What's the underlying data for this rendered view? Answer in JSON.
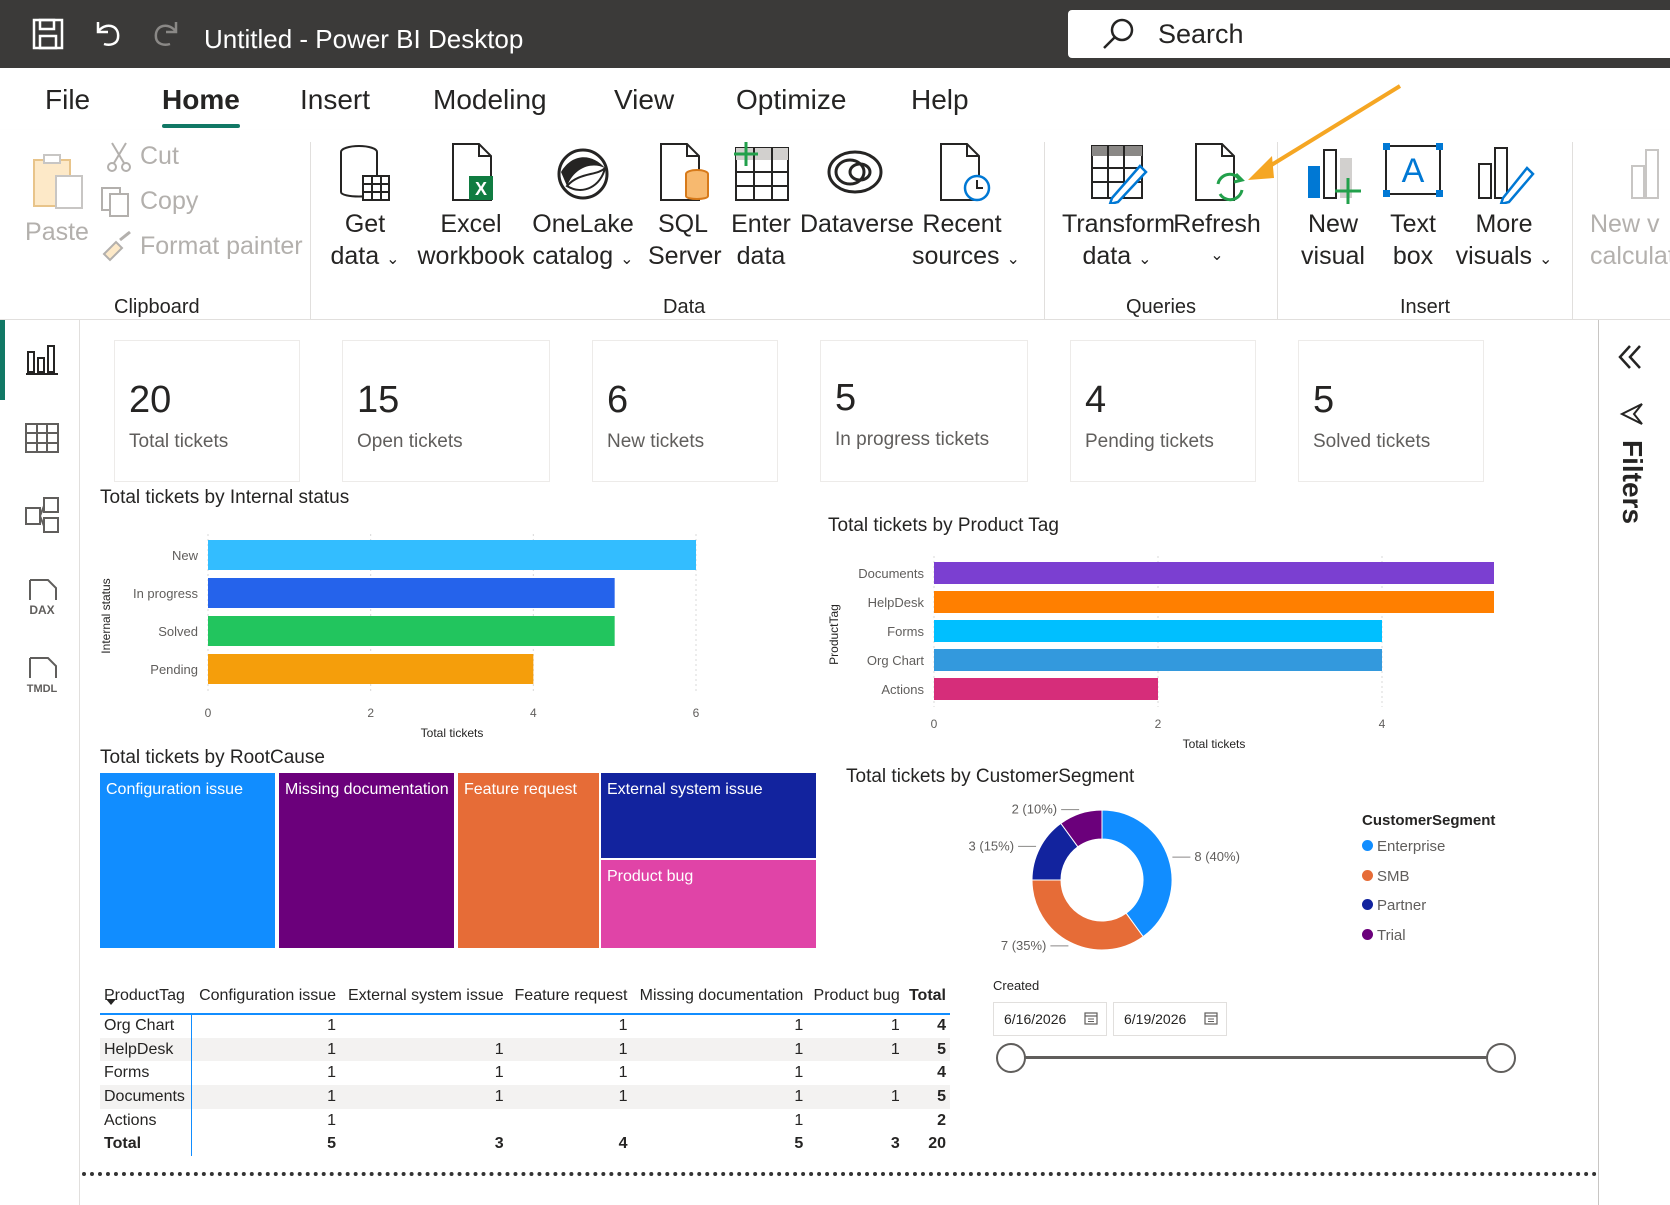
{
  "titlebar": {
    "title": "Untitled - Power BI Desktop",
    "search_label": "Search"
  },
  "menu": {
    "tabs": [
      "File",
      "Home",
      "Insert",
      "Modeling",
      "View",
      "Optimize",
      "Help"
    ],
    "active": "Home"
  },
  "ribbon": {
    "clipboard": {
      "paste": "Paste",
      "cut": "Cut",
      "copy": "Copy",
      "format_painter": "Format painter",
      "label": "Clipboard"
    },
    "data": {
      "get_data": [
        "Get",
        "data"
      ],
      "excel": [
        "Excel",
        "workbook"
      ],
      "onelake": [
        "OneLake",
        "catalog"
      ],
      "sql": [
        "SQL",
        "Server"
      ],
      "enter": [
        "Enter",
        "data"
      ],
      "dataverse": "Dataverse",
      "recent": [
        "Recent",
        "sources"
      ],
      "label": "Data"
    },
    "queries": {
      "transform": [
        "Transform",
        "data"
      ],
      "refresh": "Refresh",
      "label": "Queries"
    },
    "insert": {
      "new_visual": [
        "New",
        "visual"
      ],
      "text_box": [
        "Text",
        "box"
      ],
      "more_visuals": [
        "More",
        "visuals"
      ],
      "label": "Insert"
    },
    "calc": [
      "New v",
      "calculat"
    ]
  },
  "filters_label": "Filters",
  "cards": [
    {
      "value": "20",
      "label": "Total tickets"
    },
    {
      "value": "15",
      "label": "Open tickets"
    },
    {
      "value": "6",
      "label": "New tickets"
    },
    {
      "value": "5",
      "label": "In progress tickets"
    },
    {
      "value": "4",
      "label": "Pending tickets"
    },
    {
      "value": "5",
      "label": "Solved tickets"
    }
  ],
  "chart_data": [
    {
      "type": "bar",
      "title": "Total tickets by Internal status",
      "xlabel": "Total tickets",
      "ylabel": "Internal status",
      "categories": [
        "New",
        "In progress",
        "Solved",
        "Pending"
      ],
      "values": [
        6,
        5,
        5,
        4
      ],
      "colors": [
        "#33bdff",
        "#2563eb",
        "#22c55e",
        "#f59e0b"
      ],
      "xlim": [
        0,
        6
      ],
      "ticks": [
        0,
        2,
        4,
        6
      ]
    },
    {
      "type": "bar",
      "title": "Total tickets by Product Tag",
      "xlabel": "Total tickets",
      "ylabel": "ProductTag",
      "categories": [
        "Documents",
        "HelpDesk",
        "Forms",
        "Org Chart",
        "Actions"
      ],
      "values": [
        5,
        5,
        4,
        4,
        2
      ],
      "colors": [
        "#7b3fd1",
        "#ff7f00",
        "#00bfff",
        "#3399dd",
        "#d62d7a"
      ],
      "xlim": [
        0,
        5
      ],
      "ticks": [
        0,
        2,
        4
      ]
    },
    {
      "type": "heatmap",
      "title": "Total tickets by RootCause",
      "categories": [
        "Configuration issue",
        "Missing documentation",
        "Feature request",
        "External system issue",
        "Product bug"
      ],
      "values": [
        5,
        5,
        4,
        3,
        3
      ],
      "colors": [
        "#118dff",
        "#6b007b",
        "#e66c37",
        "#12239e",
        "#e044a7"
      ]
    },
    {
      "type": "pie",
      "title": "Total tickets by CustomerSegment",
      "legend_title": "CustomerSegment",
      "categories": [
        "Enterprise",
        "SMB",
        "Partner",
        "Trial"
      ],
      "values": [
        8,
        7,
        3,
        2
      ],
      "labels": [
        "8 (40%)",
        "7 (35%)",
        "3 (15%)",
        "2 (10%)"
      ],
      "colors": [
        "#118dff",
        "#e66c37",
        "#12239e",
        "#6b007b"
      ]
    }
  ],
  "matrix": {
    "headers": [
      "ProductTag",
      "Configuration issue",
      "External system issue",
      "Feature request",
      "Missing documentation",
      "Product bug",
      "Total"
    ],
    "rows": [
      [
        "Org Chart",
        "1",
        "",
        "1",
        "1",
        "1",
        "4"
      ],
      [
        "HelpDesk",
        "1",
        "1",
        "1",
        "1",
        "1",
        "5"
      ],
      [
        "Forms",
        "1",
        "1",
        "1",
        "1",
        "",
        "4"
      ],
      [
        "Documents",
        "1",
        "1",
        "1",
        "1",
        "1",
        "5"
      ],
      [
        "Actions",
        "1",
        "",
        "",
        "1",
        "",
        "2"
      ],
      [
        "Total",
        "5",
        "3",
        "4",
        "5",
        "3",
        "20"
      ]
    ]
  },
  "slicer": {
    "title": "Created",
    "start": "6/16/2026",
    "end": "6/19/2026"
  },
  "colors": {
    "accent": "#117865",
    "titlebar": "#3b3a39",
    "arrow": "#f5a623"
  }
}
